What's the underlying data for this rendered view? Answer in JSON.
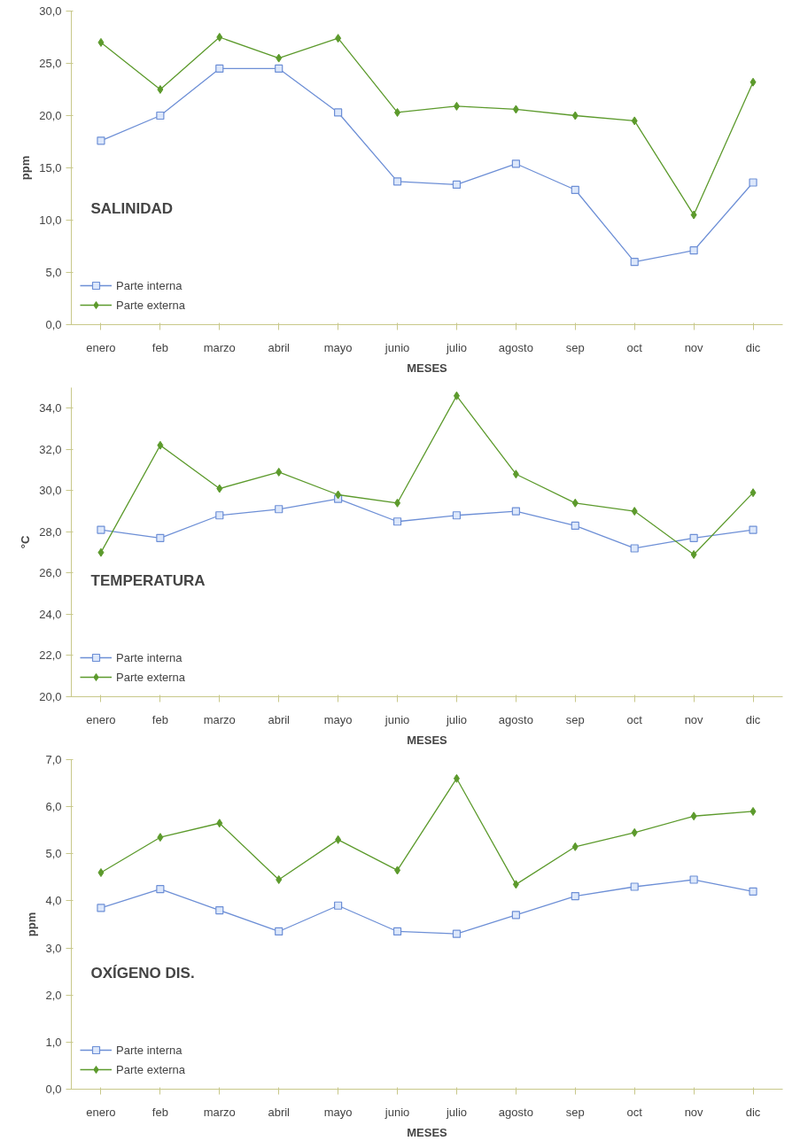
{
  "chart_data": [
    {
      "type": "line",
      "title": "SALINIDAD",
      "xlabel": "MESES",
      "ylabel": "ppm",
      "categories": [
        "enero",
        "feb",
        "marzo",
        "abril",
        "mayo",
        "junio",
        "julio",
        "agosto",
        "sep",
        "oct",
        "nov",
        "dic"
      ],
      "series": [
        {
          "name": "Parte interna",
          "color": "#6d8fd6",
          "marker": "square",
          "values": [
            17.6,
            20.0,
            24.5,
            24.5,
            20.3,
            13.7,
            13.4,
            15.4,
            12.9,
            6.0,
            7.1,
            13.6
          ]
        },
        {
          "name": "Parte externa",
          "color": "#5c9a2c",
          "marker": "diamond",
          "values": [
            27.0,
            22.5,
            27.5,
            25.5,
            27.4,
            20.3,
            20.9,
            20.6,
            20.0,
            19.5,
            10.5,
            23.2
          ]
        }
      ],
      "ylim": [
        0,
        30
      ],
      "yticks": [
        {
          "value": 0,
          "label": "0,0"
        },
        {
          "value": 5,
          "label": "5,0"
        },
        {
          "value": 10,
          "label": "10,0"
        },
        {
          "value": 15,
          "label": "15,0"
        },
        {
          "value": 20,
          "label": "20,0"
        },
        {
          "value": 25,
          "label": "25,0"
        },
        {
          "value": 30,
          "label": "30,0"
        }
      ],
      "grid": false,
      "legend": "bottom left",
      "line_style": "solid"
    },
    {
      "type": "line",
      "title": "TEMPERATURA",
      "xlabel": "MESES",
      "ylabel": "°C",
      "categories": [
        "enero",
        "feb",
        "marzo",
        "abril",
        "mayo",
        "junio",
        "julio",
        "agosto",
        "sep",
        "oct",
        "nov",
        "dic"
      ],
      "series": [
        {
          "name": "Parte interna",
          "color": "#6d8fd6",
          "marker": "square",
          "values": [
            28.1,
            27.7,
            28.8,
            29.1,
            29.6,
            28.5,
            28.8,
            29.0,
            28.3,
            27.2,
            27.7,
            28.1
          ]
        },
        {
          "name": "Parte externa",
          "color": "#5c9a2c",
          "marker": "diamond",
          "values": [
            27.0,
            32.2,
            30.1,
            30.9,
            29.8,
            29.4,
            34.6,
            30.8,
            29.4,
            29.0,
            26.9,
            29.9
          ]
        }
      ],
      "ylim": [
        20,
        35
      ],
      "yticks": [
        {
          "value": 20,
          "label": "20,0"
        },
        {
          "value": 22,
          "label": "22,0"
        },
        {
          "value": 24,
          "label": "24,0"
        },
        {
          "value": 26,
          "label": "26,0"
        },
        {
          "value": 28,
          "label": "28,0"
        },
        {
          "value": 30,
          "label": "30,0"
        },
        {
          "value": 32,
          "label": "32,0"
        },
        {
          "value": 34,
          "label": "34,0"
        }
      ],
      "grid": false,
      "legend": "bottom left",
      "line_style": "solid"
    },
    {
      "type": "line",
      "title": "OXÍGENO DIS.",
      "xlabel": "MESES",
      "ylabel": "ppm",
      "categories": [
        "enero",
        "feb",
        "marzo",
        "abril",
        "mayo",
        "junio",
        "julio",
        "agosto",
        "sep",
        "oct",
        "nov",
        "dic"
      ],
      "series": [
        {
          "name": "Parte interna",
          "color": "#6d8fd6",
          "marker": "square",
          "values": [
            3.85,
            4.25,
            3.8,
            3.35,
            3.9,
            3.35,
            3.3,
            3.7,
            4.1,
            4.3,
            4.45,
            4.2
          ]
        },
        {
          "name": "Parte externa",
          "color": "#5c9a2c",
          "marker": "diamond",
          "values": [
            4.6,
            5.35,
            5.65,
            4.45,
            5.3,
            4.65,
            6.6,
            4.35,
            5.15,
            5.45,
            5.8,
            5.9
          ]
        }
      ],
      "ylim": [
        0,
        7
      ],
      "yticks": [
        {
          "value": 0,
          "label": "0,0"
        },
        {
          "value": 1,
          "label": "1,0"
        },
        {
          "value": 2,
          "label": "2,0"
        },
        {
          "value": 3,
          "label": "3,0"
        },
        {
          "value": 4,
          "label": "4,0"
        },
        {
          "value": 5,
          "label": "5,0"
        },
        {
          "value": 6,
          "label": "6,0"
        },
        {
          "value": 7,
          "label": "7,0"
        }
      ],
      "grid": false,
      "legend": "bottom left",
      "line_style": "solid"
    }
  ]
}
